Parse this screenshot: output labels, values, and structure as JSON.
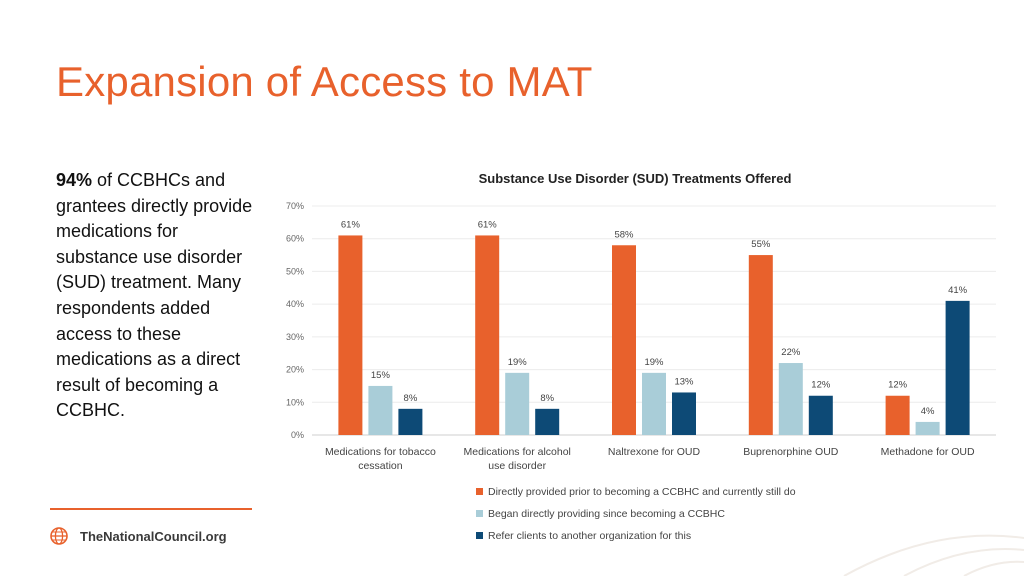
{
  "slide": {
    "title": "Expansion of Access to MAT",
    "body_bold": "94%",
    "body_text": " of CCBHCs and grantees directly provide medications for substance use disorder (SUD) treatment. Many respondents added access to these medications as a direct result of becoming a CCBHC.",
    "footer_text": "TheNationalCouncil.org"
  },
  "colors": {
    "accent": "#E8612C",
    "series": [
      "#E8612C",
      "#A9CDD8",
      "#0D4A76"
    ]
  },
  "chart_data": {
    "type": "bar",
    "title": "Substance Use Disorder (SUD) Treatments Offered",
    "categories": [
      [
        "Medications for tobacco",
        "cessation"
      ],
      [
        "Medications for alcohol",
        "use disorder"
      ],
      [
        "Naltrexone for OUD"
      ],
      [
        "Buprenorphine OUD"
      ],
      [
        "Methadone for OUD"
      ]
    ],
    "series": [
      {
        "name": "Directly provided prior to becoming a CCBHC and currently still do",
        "values": [
          61,
          61,
          58,
          55,
          12
        ]
      },
      {
        "name": "Began directly providing since becoming a CCBHC",
        "values": [
          15,
          19,
          19,
          22,
          4
        ]
      },
      {
        "name": "Refer clients to another organization for this",
        "values": [
          8,
          8,
          13,
          12,
          41
        ]
      }
    ],
    "y_ticks": [
      "0%",
      "10%",
      "20%",
      "30%",
      "40%",
      "50%",
      "60%",
      "70%"
    ],
    "ylim": [
      0,
      70
    ],
    "value_suffix": "%",
    "grid": true,
    "legend_position": "bottom"
  }
}
